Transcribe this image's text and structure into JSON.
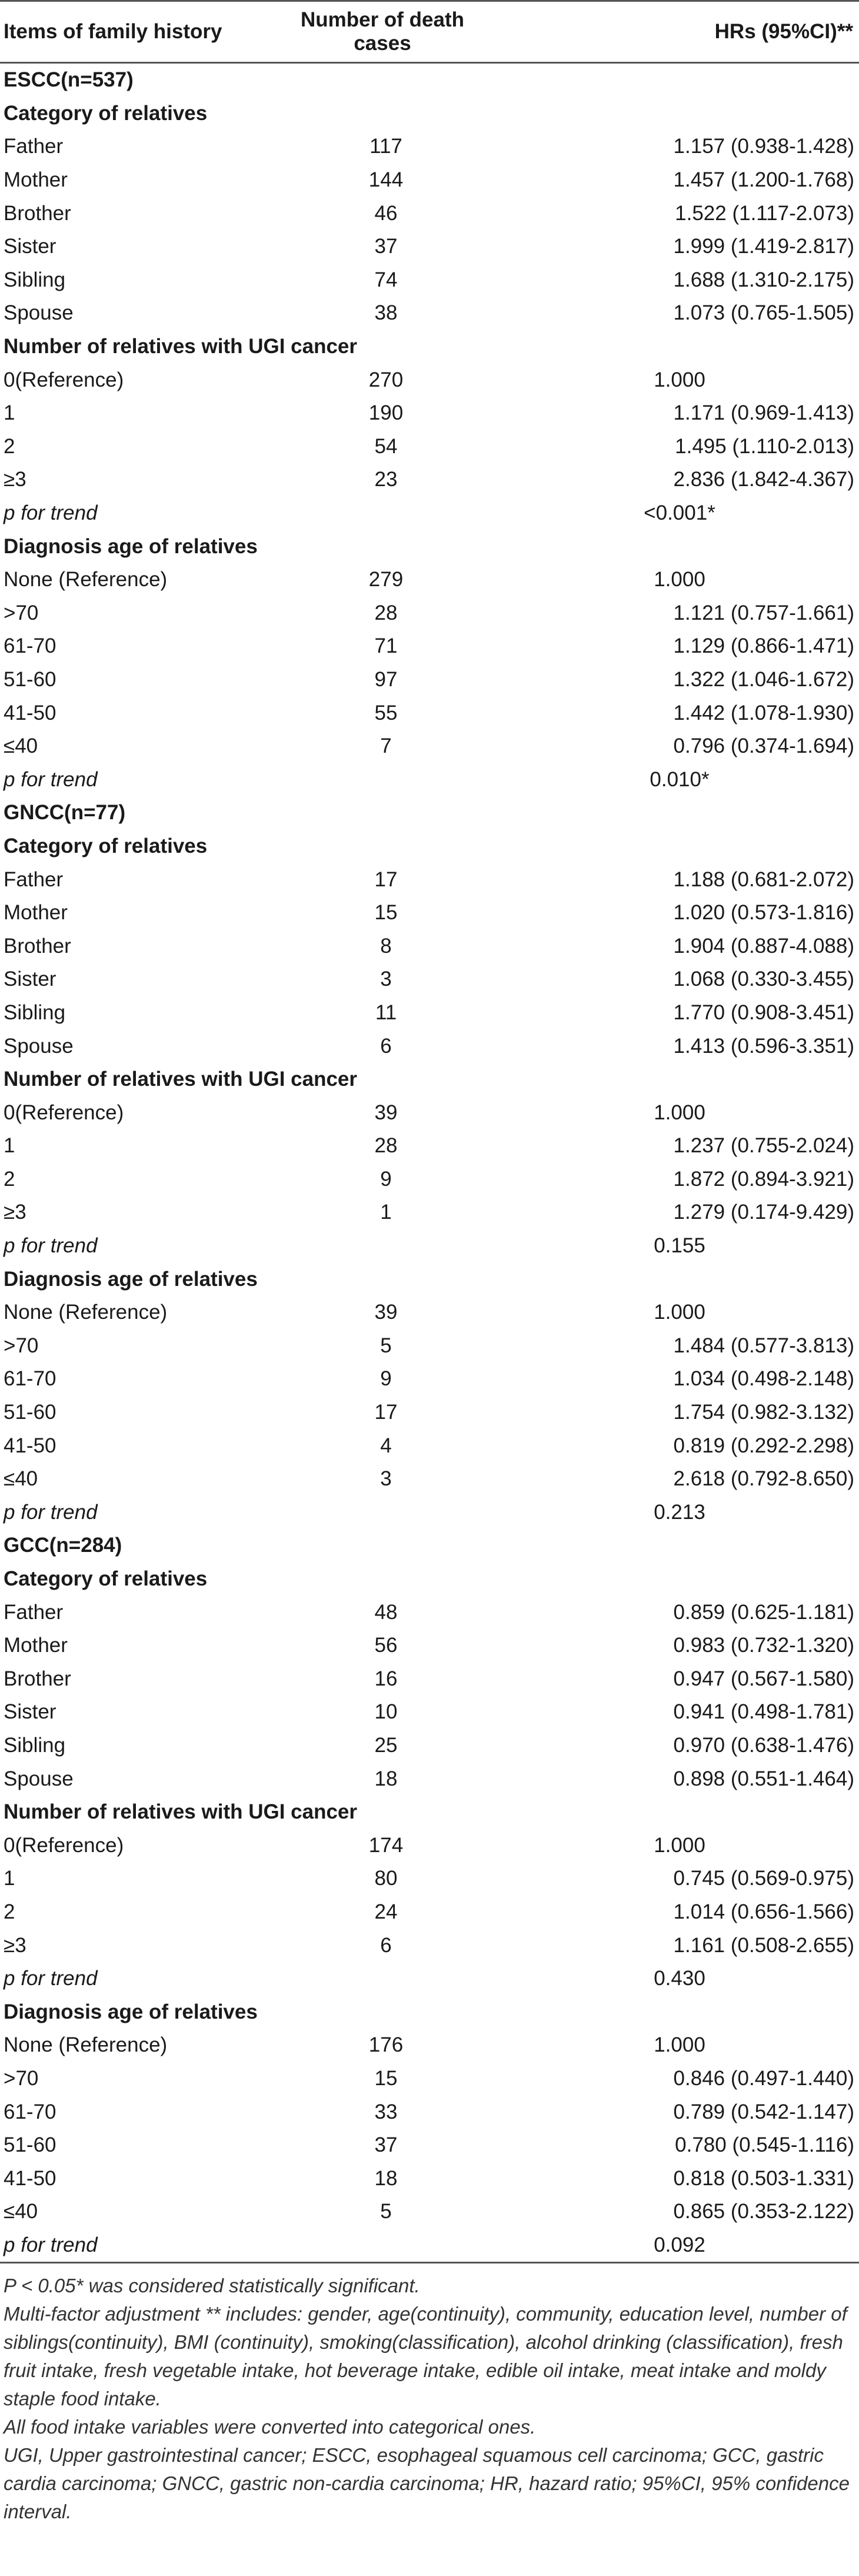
{
  "headers": [
    "Items of family history",
    "Number of death cases",
    "HRs (95%CI)**"
  ],
  "sections": [
    {
      "title": "ESCC(n=537)",
      "groups": [
        {
          "title": "Category of relatives",
          "rows": [
            {
              "label": "Father",
              "count": "117",
              "hr": "1.157 (0.938-1.428)"
            },
            {
              "label": "Mother",
              "count": "144",
              "hr": "1.457 (1.200-1.768)"
            },
            {
              "label": "Brother",
              "count": "46",
              "hr": "1.522 (1.117-2.073)"
            },
            {
              "label": "Sister",
              "count": "37",
              "hr": "1.999 (1.419-2.817)"
            },
            {
              "label": "Sibling",
              "count": "74",
              "hr": "1.688 (1.310-2.175)"
            },
            {
              "label": "Spouse",
              "count": "38",
              "hr": "1.073 (0.765-1.505)"
            }
          ]
        },
        {
          "title": "Number of relatives with UGI cancer",
          "rows": [
            {
              "label": "0(Reference)",
              "count": "270",
              "hr": "1.000",
              "center": true
            },
            {
              "label": "1",
              "count": "190",
              "hr": "1.171 (0.969-1.413)"
            },
            {
              "label": "2",
              "count": "54",
              "hr": "1.495 (1.110-2.013)"
            },
            {
              "label": "≥3",
              "count": "23",
              "hr": "2.836 (1.842-4.367)"
            },
            {
              "label": "p for trend",
              "count": "",
              "hr": "<0.001*",
              "center": true,
              "trend": true
            }
          ]
        },
        {
          "title": "Diagnosis age of relatives",
          "rows": [
            {
              "label": "None (Reference)",
              "count": "279",
              "hr": "1.000",
              "center": true
            },
            {
              "label": ">70",
              "count": "28",
              "hr": "1.121 (0.757-1.661)"
            },
            {
              "label": "61-70",
              "count": "71",
              "hr": "1.129 (0.866-1.471)"
            },
            {
              "label": "51-60",
              "count": "97",
              "hr": "1.322 (1.046-1.672)"
            },
            {
              "label": "41-50",
              "count": "55",
              "hr": "1.442 (1.078-1.930)"
            },
            {
              "label": "≤40",
              "count": "7",
              "hr": "0.796 (0.374-1.694)"
            },
            {
              "label": "p for trend",
              "count": "",
              "hr": "0.010*",
              "center": true,
              "trend": true
            }
          ]
        }
      ]
    },
    {
      "title": "GNCC(n=77)",
      "groups": [
        {
          "title": "Category of relatives",
          "rows": [
            {
              "label": "Father",
              "count": "17",
              "hr": "1.188 (0.681-2.072)"
            },
            {
              "label": "Mother",
              "count": "15",
              "hr": "1.020 (0.573-1.816)"
            },
            {
              "label": "Brother",
              "count": "8",
              "hr": "1.904 (0.887-4.088)"
            },
            {
              "label": "Sister",
              "count": "3",
              "hr": "1.068 (0.330-3.455)"
            },
            {
              "label": "Sibling",
              "count": "11",
              "hr": "1.770 (0.908-3.451)"
            },
            {
              "label": "Spouse",
              "count": "6",
              "hr": "1.413 (0.596-3.351)"
            }
          ]
        },
        {
          "title": "Number of relatives with UGI cancer",
          "rows": [
            {
              "label": "0(Reference)",
              "count": "39",
              "hr": "1.000",
              "center": true
            },
            {
              "label": "1",
              "count": "28",
              "hr": "1.237 (0.755-2.024)"
            },
            {
              "label": "2",
              "count": "9",
              "hr": "1.872 (0.894-3.921)"
            },
            {
              "label": "≥3",
              "count": "1",
              "hr": "1.279 (0.174-9.429)"
            },
            {
              "label": "p for trend",
              "count": "",
              "hr": "0.155",
              "center": true,
              "trend": true
            }
          ]
        },
        {
          "title": "Diagnosis age of relatives",
          "rows": [
            {
              "label": "None (Reference)",
              "count": "39",
              "hr": "1.000",
              "center": true
            },
            {
              "label": ">70",
              "count": "5",
              "hr": "1.484 (0.577-3.813)"
            },
            {
              "label": "61-70",
              "count": "9",
              "hr": "1.034 (0.498-2.148)"
            },
            {
              "label": "51-60",
              "count": "17",
              "hr": "1.754 (0.982-3.132)"
            },
            {
              "label": "41-50",
              "count": "4",
              "hr": "0.819 (0.292-2.298)"
            },
            {
              "label": "≤40",
              "count": "3",
              "hr": "2.618 (0.792-8.650)"
            },
            {
              "label": "p for trend",
              "count": "",
              "hr": "0.213",
              "center": true,
              "trend": true
            }
          ]
        }
      ]
    },
    {
      "title": "GCC(n=284)",
      "groups": [
        {
          "title": "Category of relatives",
          "rows": [
            {
              "label": "Father",
              "count": "48",
              "hr": "0.859 (0.625-1.181)"
            },
            {
              "label": "Mother",
              "count": "56",
              "hr": "0.983 (0.732-1.320)"
            },
            {
              "label": "Brother",
              "count": "16",
              "hr": "0.947 (0.567-1.580)"
            },
            {
              "label": "Sister",
              "count": "10",
              "hr": "0.941 (0.498-1.781)"
            },
            {
              "label": "Sibling",
              "count": "25",
              "hr": "0.970 (0.638-1.476)"
            },
            {
              "label": "Spouse",
              "count": "18",
              "hr": "0.898 (0.551-1.464)"
            }
          ]
        },
        {
          "title": "Number of relatives with UGI cancer",
          "rows": [
            {
              "label": "0(Reference)",
              "count": "174",
              "hr": "1.000",
              "center": true
            },
            {
              "label": "1",
              "count": "80",
              "hr": "0.745 (0.569-0.975)"
            },
            {
              "label": "2",
              "count": "24",
              "hr": "1.014 (0.656-1.566)"
            },
            {
              "label": "≥3",
              "count": "6",
              "hr": "1.161 (0.508-2.655)"
            },
            {
              "label": "p for trend",
              "count": "",
              "hr": "0.430",
              "center": true,
              "trend": true
            }
          ]
        },
        {
          "title": "Diagnosis age of relatives",
          "rows": [
            {
              "label": "None (Reference)",
              "count": "176",
              "hr": "1.000",
              "center": true
            },
            {
              "label": ">70",
              "count": "15",
              "hr": "0.846 (0.497-1.440)"
            },
            {
              "label": "61-70",
              "count": "33",
              "hr": "0.789 (0.542-1.147)"
            },
            {
              "label": "51-60",
              "count": "37",
              "hr": "0.780 (0.545-1.116)"
            },
            {
              "label": "41-50",
              "count": "18",
              "hr": "0.818 (0.503-1.331)"
            },
            {
              "label": "≤40",
              "count": "5",
              "hr": "0.865 (0.353-2.122)"
            },
            {
              "label": "p for trend",
              "count": "",
              "hr": "0.092",
              "center": true,
              "trend": true
            }
          ]
        }
      ]
    }
  ],
  "footnotes": [
    "P < 0.05* was considered statistically significant.",
    "Multi-factor adjustment ** includes: gender, age(continuity), community, education level, number of siblings(continuity), BMI (continuity), smoking(classification), alcohol drinking (classification), fresh fruit intake, fresh vegetable intake, hot beverage intake, edible oil intake, meat intake and moldy staple food intake.",
    "All food intake variables were converted into categorical ones.",
    "UGI, Upper gastrointestinal cancer; ESCC, esophageal squamous cell carcinoma; GCC, gastric cardia carcinoma; GNCC, gastric non-cardia carcinoma; HR, hazard ratio; 95%CI, 95% confidence interval."
  ]
}
